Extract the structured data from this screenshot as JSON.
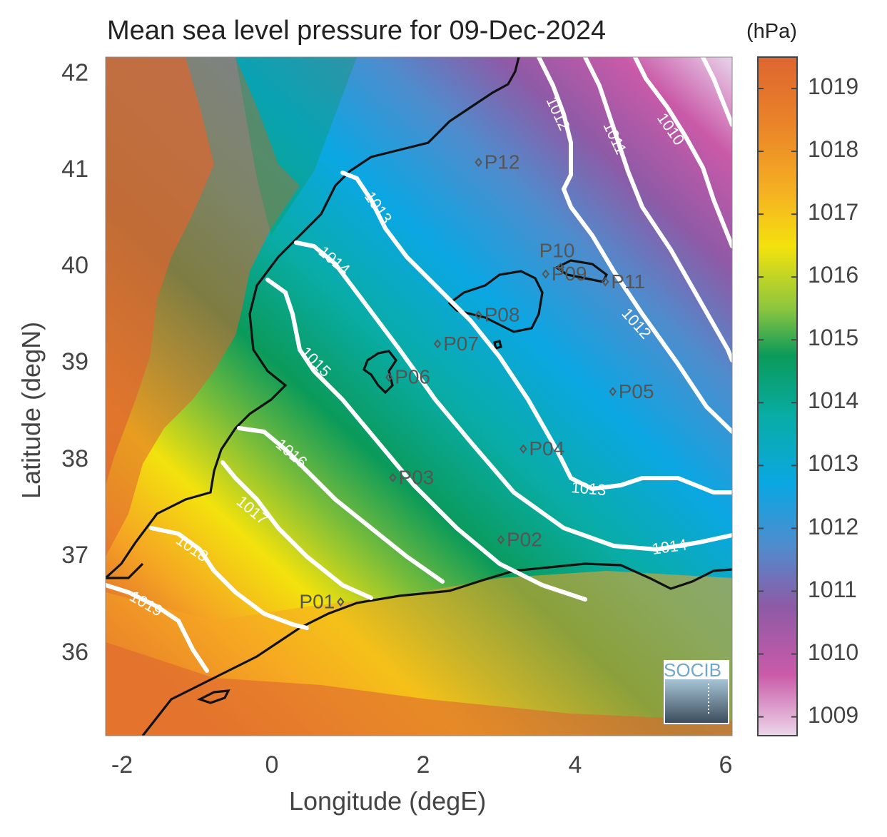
{
  "title": "Mean sea level pressure for 09-Dec-2024",
  "colorbar": {
    "units": "(hPa)",
    "labels": [
      "1019",
      "1018",
      "1017",
      "1016",
      "1015",
      "1014",
      "1013",
      "1012",
      "1011",
      "1010",
      "1009"
    ],
    "colors": [
      "#e0e0ef",
      "#ca5aa8",
      "#8e5aa6",
      "#4f8ccd",
      "#0aa7e3",
      "#09aca6",
      "#0a9a5a",
      "#7bbd3a",
      "#f3e20d",
      "#f5a623",
      "#de6530"
    ]
  },
  "axes": {
    "xlabel": "Longitude (degE)",
    "ylabel": "Latitude (degN)",
    "xticks": [
      "-2",
      "0",
      "2",
      "4",
      "6"
    ],
    "yticks": [
      "42",
      "41",
      "40",
      "39",
      "38",
      "37",
      "36"
    ]
  },
  "chart_data": {
    "type": "heatmap",
    "title": "Mean sea level pressure for 09-Dec-2024",
    "xlabel": "Longitude (degE)",
    "ylabel": "Latitude (degN)",
    "xlim": [
      -2.3,
      6.1
    ],
    "ylim": [
      35.1,
      42.2
    ],
    "colorbar_range": [
      1008.7,
      1019.5
    ],
    "colorbar_units": "hPa",
    "contour_levels": [
      1010,
      1011,
      1012,
      1013,
      1014,
      1015,
      1016,
      1017,
      1018,
      1019
    ],
    "points": [
      {
        "name": "P01",
        "lon": 0.85,
        "lat": 36.5
      },
      {
        "name": "P02",
        "lon": 3.0,
        "lat": 37.15
      },
      {
        "name": "P03",
        "lon": 1.55,
        "lat": 37.8
      },
      {
        "name": "P04",
        "lon": 3.3,
        "lat": 38.1
      },
      {
        "name": "P05",
        "lon": 4.5,
        "lat": 38.7
      },
      {
        "name": "P06",
        "lon": 1.5,
        "lat": 38.85
      },
      {
        "name": "P07",
        "lon": 2.15,
        "lat": 39.2
      },
      {
        "name": "P08",
        "lon": 2.7,
        "lat": 39.5
      },
      {
        "name": "P09",
        "lon": 3.6,
        "lat": 39.93
      },
      {
        "name": "P10",
        "lon": 3.8,
        "lat": 40.0
      },
      {
        "name": "P11",
        "lon": 4.4,
        "lat": 39.85
      },
      {
        "name": "P12",
        "lon": 2.7,
        "lat": 41.1
      }
    ]
  },
  "logo": "SOCIB"
}
